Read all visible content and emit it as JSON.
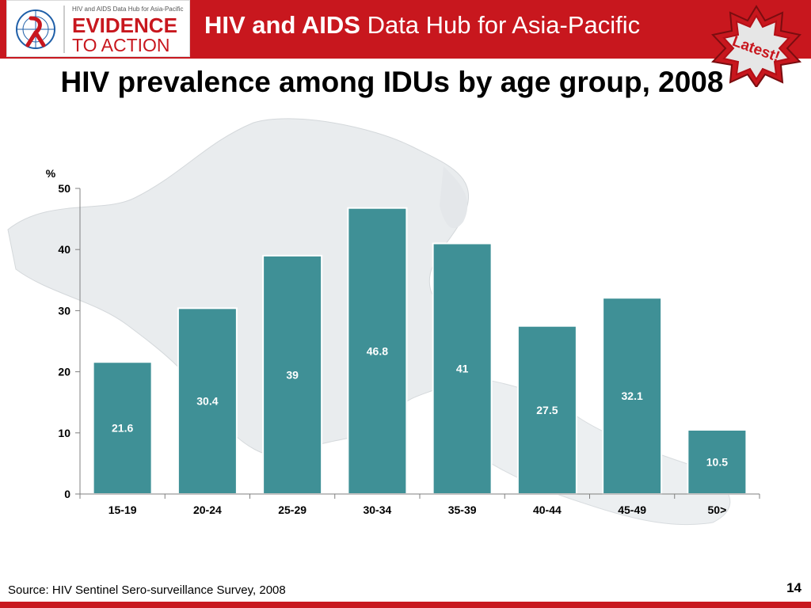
{
  "header": {
    "logo_tagline": "HIV and AIDS Data Hub for Asia-Pacific",
    "logo_line1": "EVIDENCE",
    "logo_line2": "TO ACTION",
    "title_bold": "HIV and AIDS",
    "title_regular": "Data Hub for Asia-Pacific",
    "badge": "Latest!"
  },
  "colors": {
    "brand_red": "#c8171e",
    "bar_teal": "#3f9096"
  },
  "slide": {
    "title": "HIV prevalence among IDUs by age group, 2008"
  },
  "chart_data": {
    "type": "bar",
    "title": "HIV prevalence among IDUs by age group, 2008",
    "ylabel": "%",
    "xlabel": "",
    "categories": [
      "15-19",
      "20-24",
      "25-29",
      "30-34",
      "35-39",
      "40-44",
      "45-49",
      "50>"
    ],
    "values": [
      21.6,
      30.4,
      39,
      46.8,
      41,
      27.5,
      32.1,
      10.5
    ],
    "data_labels": [
      "21.6",
      "30.4",
      "39",
      "46.8",
      "41",
      "27.5",
      "32.1",
      "10.5"
    ],
    "ylim": [
      0,
      50
    ],
    "yticks": [
      0,
      10,
      20,
      30,
      40,
      50
    ],
    "grid": false,
    "legend": "none"
  },
  "footer": {
    "source": "Source: HIV Sentinel Sero-surveillance Survey, 2008",
    "page": "14"
  }
}
